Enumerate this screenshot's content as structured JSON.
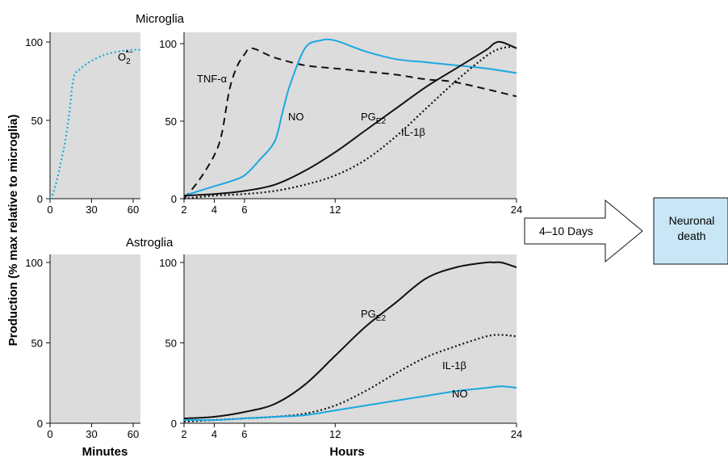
{
  "colors": {
    "panel": "#dcdcdc",
    "cyan": "#1ba8e0",
    "black": "#111111",
    "box": "#c8e6f6"
  },
  "y_axis_label": "Production (% max relative to microglia)",
  "x_axis_label_minutes": "Minutes",
  "x_axis_label_hours": "Hours",
  "titles": {
    "microglia": "Microglia",
    "astroglia": "Astroglia"
  },
  "arrow_label": "4–10 Days",
  "outcome_box": {
    "line1": "Neuronal",
    "line2": "death"
  },
  "labels": {
    "o2_main": "O",
    "o2_sub": "2",
    "o2_sup": "•–",
    "tnf": "TNF-α",
    "no_micro": "NO",
    "pge2_micro_main": "PG",
    "pge2_micro_sub": "E2",
    "il1b_micro": "IL-1β",
    "pge2_astro_main": "PG",
    "pge2_astro_sub": "E2",
    "il1b_astro": "IL-1β",
    "no_astro": "NO"
  },
  "chart_data": [
    {
      "panel": "microglia-minutes",
      "type": "line",
      "xlim": [
        0,
        65
      ],
      "ylim": [
        0,
        100
      ],
      "xticks": [
        "0",
        "30",
        "60"
      ],
      "yticks": [
        "0",
        "50",
        "100"
      ],
      "series": [
        {
          "name": "O2•–",
          "style": "dotted",
          "color": "cyan",
          "x": [
            0,
            2,
            5,
            8,
            11,
            14,
            17,
            22,
            30,
            40,
            50,
            60,
            65
          ],
          "y": [
            0,
            3,
            12,
            24,
            37,
            55,
            77,
            83,
            88,
            92,
            94,
            95,
            95
          ]
        }
      ]
    },
    {
      "panel": "microglia-hours",
      "type": "line",
      "xlim": [
        2,
        24
      ],
      "ylim": [
        0,
        100
      ],
      "xticks": [
        "2",
        "4",
        "6",
        "12",
        "24"
      ],
      "yticks": [
        "0",
        "50",
        "100"
      ],
      "series": [
        {
          "name": "TNF-α",
          "style": "dashed",
          "color": "black",
          "x": [
            2,
            3,
            4,
            4.5,
            5,
            5.5,
            6,
            6.5,
            8,
            10,
            12,
            14,
            16,
            18,
            20,
            24
          ],
          "y": [
            0,
            12,
            28,
            42,
            70,
            85,
            93,
            97,
            91,
            86,
            84,
            82,
            80,
            77,
            75,
            66
          ]
        },
        {
          "name": "NO",
          "style": "solid",
          "color": "cyan",
          "x": [
            2,
            3,
            4,
            5,
            6,
            7,
            8,
            8.5,
            9,
            10,
            11,
            12,
            14,
            16,
            18,
            20,
            22,
            24
          ],
          "y": [
            2,
            5,
            8,
            11,
            15,
            25,
            37,
            55,
            73,
            97,
            102,
            102,
            95,
            90,
            88,
            86,
            84,
            81
          ]
        },
        {
          "name": "PGE2",
          "style": "solid",
          "color": "black",
          "x": [
            2,
            4,
            6,
            8,
            10,
            12,
            14,
            16,
            18,
            20,
            22,
            22.5,
            23,
            24
          ],
          "y": [
            2,
            3,
            5,
            9,
            18,
            30,
            44,
            58,
            72,
            84,
            96,
            100,
            101,
            97
          ]
        },
        {
          "name": "IL-1β",
          "style": "dotted",
          "color": "black",
          "x": [
            2,
            4,
            6,
            8,
            10,
            12,
            14,
            16,
            18,
            20,
            22,
            23,
            24
          ],
          "y": [
            0,
            2,
            3,
            5,
            9,
            15,
            25,
            40,
            58,
            76,
            92,
            97,
            98
          ]
        }
      ]
    },
    {
      "panel": "astroglia-minutes",
      "type": "line",
      "xlim": [
        0,
        65
      ],
      "ylim": [
        0,
        100
      ],
      "xticks": [
        "0",
        "30",
        "60"
      ],
      "yticks": [
        "0",
        "50",
        "100"
      ],
      "series": []
    },
    {
      "panel": "astroglia-hours",
      "type": "line",
      "xlim": [
        2,
        24
      ],
      "ylim": [
        0,
        100
      ],
      "xticks": [
        "2",
        "4",
        "6",
        "12",
        "24"
      ],
      "yticks": [
        "0",
        "50",
        "100"
      ],
      "series": [
        {
          "name": "PGE2",
          "style": "solid",
          "color": "black",
          "x": [
            2,
            4,
            6,
            8,
            10,
            12,
            14,
            16,
            18,
            20,
            22,
            22.5,
            23,
            24
          ],
          "y": [
            3,
            4,
            7,
            12,
            24,
            42,
            60,
            75,
            90,
            97,
            100,
            100,
            100,
            97
          ]
        },
        {
          "name": "IL-1β",
          "style": "dotted",
          "color": "black",
          "x": [
            2,
            4,
            6,
            8,
            10,
            12,
            14,
            16,
            18,
            20,
            22,
            23,
            24
          ],
          "y": [
            1,
            2,
            3,
            4,
            6,
            11,
            20,
            31,
            41,
            48,
            54,
            55,
            54
          ]
        },
        {
          "name": "NO",
          "style": "solid",
          "color": "cyan",
          "x": [
            2,
            4,
            6,
            8,
            10,
            12,
            14,
            16,
            18,
            20,
            22,
            23,
            24
          ],
          "y": [
            2,
            2,
            3,
            4,
            5,
            8,
            11,
            14,
            17,
            20,
            22,
            23,
            22
          ]
        }
      ]
    }
  ]
}
